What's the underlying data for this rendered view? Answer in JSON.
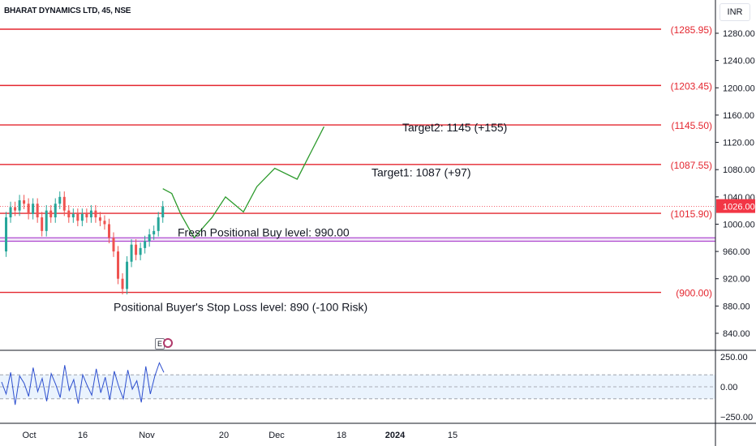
{
  "header": {
    "symbol": "BHARAT DYNAMICS LTD, 45, NSE",
    "currency": "INR",
    "earnings_marker": "E"
  },
  "colors": {
    "level_line": "#e4262f",
    "level_text": "#e4262f",
    "buy_band": "#b04cd0",
    "projection": "#2c9a2c",
    "candle_up": "#26a69a",
    "candle_down": "#ef5350",
    "oscillator": "#2d4fcf",
    "osc_band_fill": "#eaf3fd",
    "grid_axis": "#131722",
    "last_price_bg": "#f23645"
  },
  "chart_data": {
    "type": "line",
    "price_axis": {
      "ticks": [
        1280,
        1240,
        1200,
        1160,
        1120,
        1080,
        1040,
        1000,
        960,
        920,
        880,
        840
      ]
    },
    "time_axis": {
      "ticks": [
        "Oct",
        "16",
        "Nov",
        "20",
        "Dec",
        "18",
        "2024",
        "15"
      ]
    },
    "last_price": 1026.0,
    "levels": [
      {
        "value": 1285.95,
        "label": "(1285.95)"
      },
      {
        "value": 1203.45,
        "label": "(1203.45)"
      },
      {
        "value": 1145.5,
        "label": "(1145.50)"
      },
      {
        "value": 1087.55,
        "label": "(1087.55)"
      },
      {
        "value": 1015.9,
        "label": "(1015.90)"
      },
      {
        "value": 900.0,
        "label": "(900.00)"
      }
    ],
    "buy_band": [
      980,
      975
    ],
    "annotations": [
      {
        "text": "Target2: 1145 (+155)",
        "price": 1143
      },
      {
        "text": "Target1: 1087 (+97)",
        "price": 1077
      },
      {
        "text": "Fresh Positional Buy level: 990.00",
        "price": 989
      },
      {
        "text": "Positional Buyer's Stop Loss level: 890 (-100 Risk)",
        "price": 880
      }
    ],
    "projection": [
      {
        "t": 36,
        "price": 1052
      },
      {
        "t": 38,
        "price": 1045
      },
      {
        "t": 40,
        "price": 1015
      },
      {
        "t": 43,
        "price": 980
      },
      {
        "t": 47,
        "price": 1010
      },
      {
        "t": 50,
        "price": 1040
      },
      {
        "t": 54,
        "price": 1018
      },
      {
        "t": 57,
        "price": 1055
      },
      {
        "t": 61,
        "price": 1082
      },
      {
        "t": 66,
        "price": 1066
      },
      {
        "t": 72,
        "price": 1143
      }
    ],
    "price_series": [
      {
        "t": 0,
        "price": 960
      },
      {
        "t": 1,
        "price": 1010
      },
      {
        "t": 2,
        "price": 1025
      },
      {
        "t": 3,
        "price": 1020
      },
      {
        "t": 4,
        "price": 1035
      },
      {
        "t": 5,
        "price": 1030
      },
      {
        "t": 6,
        "price": 1015
      },
      {
        "t": 7,
        "price": 1030
      },
      {
        "t": 8,
        "price": 1010
      },
      {
        "t": 9,
        "price": 990
      },
      {
        "t": 10,
        "price": 1020
      },
      {
        "t": 11,
        "price": 1010
      },
      {
        "t": 12,
        "price": 1030
      },
      {
        "t": 13,
        "price": 1040
      },
      {
        "t": 14,
        "price": 1020
      },
      {
        "t": 15,
        "price": 1010
      },
      {
        "t": 16,
        "price": 1015
      },
      {
        "t": 17,
        "price": 1005
      },
      {
        "t": 18,
        "price": 1015
      },
      {
        "t": 19,
        "price": 1010
      },
      {
        "t": 20,
        "price": 1020
      },
      {
        "t": 21,
        "price": 1010
      },
      {
        "t": 22,
        "price": 1005
      },
      {
        "t": 23,
        "price": 1000
      },
      {
        "t": 24,
        "price": 980
      },
      {
        "t": 25,
        "price": 960
      },
      {
        "t": 26,
        "price": 920
      },
      {
        "t": 27,
        "price": 905
      },
      {
        "t": 28,
        "price": 945
      },
      {
        "t": 29,
        "price": 970
      },
      {
        "t": 30,
        "price": 955
      },
      {
        "t": 31,
        "price": 965
      },
      {
        "t": 32,
        "price": 975
      },
      {
        "t": 33,
        "price": 985
      },
      {
        "t": 34,
        "price": 990
      },
      {
        "t": 35,
        "price": 1010
      },
      {
        "t": 36,
        "price": 1026
      }
    ],
    "oscillator": {
      "ticks": [
        250,
        0,
        -250
      ],
      "tick_labels": [
        "250.00",
        "0.00",
        "−250.00"
      ],
      "band": [
        100,
        -100
      ],
      "values": [
        40,
        -60,
        120,
        -150,
        90,
        30,
        -80,
        160,
        -40,
        70,
        -120,
        110,
        20,
        -90,
        180,
        -30,
        60,
        -140,
        100,
        10,
        -70,
        150,
        -50,
        80,
        -110,
        130,
        0,
        -100,
        140,
        -20,
        50,
        -130,
        170,
        -60,
        90,
        200,
        120
      ]
    }
  }
}
